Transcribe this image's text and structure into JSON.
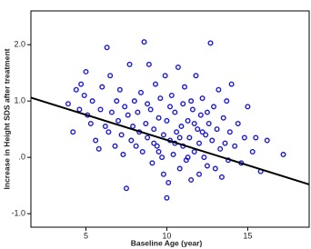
{
  "chart_data": {
    "type": "scatter",
    "x_label": "Baseline Age (year)",
    "y_label": "Increase in Height SDS after treatment",
    "color": "#1a1ad4",
    "xlim": [
      1.6,
      18.8
    ],
    "ylim": [
      -1.24,
      2.6
    ],
    "xticks": [
      5,
      10,
      15
    ],
    "yticks": [
      {
        "value": -1,
        "label": "-1.0"
      },
      {
        "value": 0,
        "label": ".0"
      },
      {
        "value": 1,
        "label": "1.0"
      },
      {
        "value": 2,
        "label": "2.0"
      }
    ],
    "fit_line": {
      "x": [
        1.6,
        18.8
      ],
      "y": [
        1.06,
        -0.48
      ]
    },
    "x": [
      3.9,
      4.2,
      4.4,
      4.6,
      4.7,
      4.9,
      5.0,
      5.1,
      5.3,
      5.4,
      5.6,
      5.8,
      5.9,
      6.0,
      6.2,
      6.3,
      6.4,
      6.5,
      6.6,
      6.8,
      6.9,
      7.0,
      7.1,
      7.2,
      7.3,
      7.4,
      7.5,
      7.6,
      7.7,
      7.8,
      7.9,
      8.0,
      8.1,
      8.2,
      8.3,
      8.4,
      8.5,
      8.6,
      8.7,
      8.8,
      8.9,
      9.0,
      9.1,
      9.2,
      9.3,
      9.4,
      9.5,
      9.6,
      9.7,
      9.8,
      9.9,
      10.0,
      10.0,
      10.1,
      10.2,
      10.3,
      10.4,
      10.5,
      10.6,
      10.7,
      10.8,
      10.9,
      11.0,
      11.0,
      11.1,
      11.2,
      11.3,
      11.4,
      11.5,
      11.6,
      11.7,
      11.8,
      11.9,
      12.0,
      12.0,
      12.1,
      12.2,
      12.3,
      12.4,
      12.5,
      12.6,
      12.7,
      12.8,
      12.9,
      13.0,
      13.1,
      13.2,
      13.3,
      13.4,
      13.5,
      13.6,
      13.7,
      13.8,
      13.9,
      14.0,
      14.2,
      14.4,
      14.6,
      14.8,
      15.0,
      15.3,
      15.5,
      15.8,
      16.2,
      17.2,
      9.5,
      10.2,
      10.8,
      11.3,
      11.7,
      12.2,
      9.8,
      10.5,
      11.5,
      12.5,
      8.8,
      9.2
    ],
    "y": [
      0.95,
      0.45,
      1.2,
      0.85,
      1.3,
      1.1,
      1.52,
      0.75,
      0.6,
      1.0,
      0.3,
      0.15,
      0.85,
      1.25,
      0.55,
      1.95,
      0.45,
      1.45,
      0.8,
      0.2,
      1.0,
      0.65,
      1.2,
      0.4,
      0.05,
      0.9,
      -0.55,
      0.75,
      1.65,
      0.3,
      0.55,
      1.0,
      0.2,
      0.8,
      0.45,
      1.15,
      0.1,
      2.05,
      0.6,
      0.35,
      1.65,
      0.85,
      -0.1,
      0.5,
      1.3,
      0.2,
      0.7,
      1.05,
      0.0,
      0.4,
      1.45,
      -0.72,
      0.65,
      -0.45,
      0.3,
      1.1,
      0.05,
      0.8,
      0.45,
      1.6,
      -0.2,
      0.55,
      0.95,
      0.2,
      1.25,
      -0.05,
      0.65,
      0.35,
      -0.4,
      0.85,
      0.1,
      1.45,
      0.5,
      0.25,
      -0.3,
      0.75,
      1.05,
      0.0,
      0.4,
      -0.15,
      0.6,
      2.03,
      0.3,
      0.9,
      -0.2,
      0.5,
      1.2,
      0.15,
      -0.35,
      0.7,
      0.25,
      1.0,
      -0.05,
      0.45,
      1.3,
      0.2,
      0.6,
      -0.1,
      0.35,
      0.9,
      0.1,
      0.35,
      -0.25,
      0.3,
      0.05,
      0.1,
      0.9,
      0.35,
      0.0,
      0.6,
      0.45,
      -0.3,
      0.25,
      1.0,
      0.8,
      0.95,
      0.25
    ]
  }
}
